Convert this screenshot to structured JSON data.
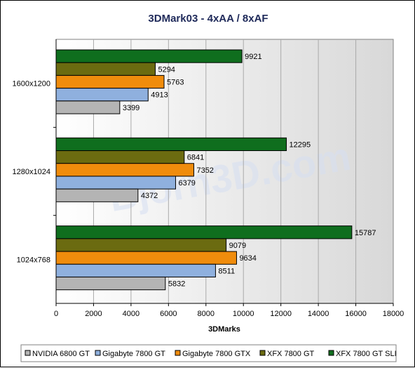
{
  "chart_data": {
    "type": "bar",
    "orientation": "horizontal",
    "title": "3DMark03 - 4xAA / 8xAF",
    "xlabel": "3DMarks",
    "ylabel": "",
    "xlim": [
      0,
      18000
    ],
    "xticks": [
      "0",
      "2000",
      "4000",
      "6000",
      "8000",
      "10000",
      "12000",
      "14000",
      "16000",
      "18000"
    ],
    "grid": true,
    "legend_position": "bottom",
    "watermark": "Bjorn3D.com",
    "categories": [
      "1600x1200",
      "1280x1024",
      "1024x768"
    ],
    "series": [
      {
        "name": "NVIDIA 6800 GT",
        "color": "#b4b4b4",
        "values": [
          3399,
          4372,
          5832
        ]
      },
      {
        "name": "Gigabyte 7800 GT",
        "color": "#8fb0de",
        "values": [
          4913,
          6379,
          8511
        ]
      },
      {
        "name": "Gigabyte 7800 GTX",
        "color": "#f08c0c",
        "values": [
          5763,
          7352,
          9634
        ]
      },
      {
        "name": "XFX 7800 GT",
        "color": "#6b6b10",
        "values": [
          5294,
          6841,
          9079
        ]
      },
      {
        "name": "XFX 7800 GT SLI",
        "color": "#0f6e1e",
        "values": [
          9921,
          12295,
          15787
        ]
      }
    ]
  }
}
